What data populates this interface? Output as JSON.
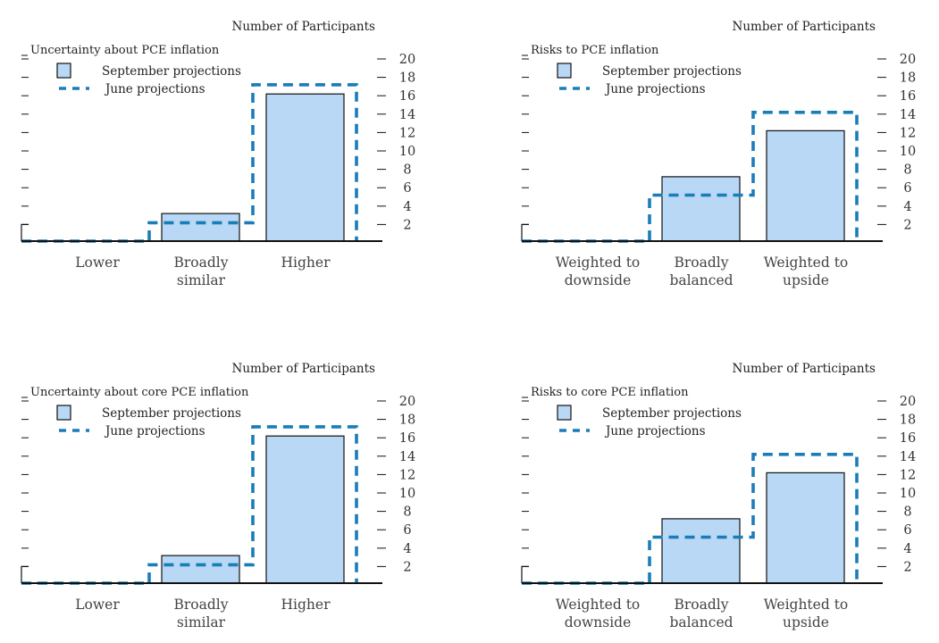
{
  "colors": {
    "bar_fill": "#b8d8f6",
    "bar_stroke": "#111111",
    "june_line": "#1a7db8",
    "axis": "#111111"
  },
  "chart_data": [
    {
      "type": "bar",
      "title": "Uncertainty about PCE inflation",
      "units_label": "Number of Participants",
      "categories": [
        [
          "Lower"
        ],
        [
          "Broadly",
          "similar"
        ],
        [
          "Higher"
        ]
      ],
      "series": [
        {
          "name": "September projections",
          "style": "bar",
          "values": [
            0,
            3,
            16
          ]
        },
        {
          "name": "June projections",
          "style": "dashed-step",
          "values": [
            0,
            2,
            17
          ]
        }
      ],
      "yticks": [
        2,
        4,
        6,
        8,
        10,
        12,
        14,
        16,
        18,
        20
      ],
      "ylim": [
        0,
        20
      ],
      "legend_position": "top-left"
    },
    {
      "type": "bar",
      "title": "Risks to PCE inflation",
      "units_label": "Number of Participants",
      "categories": [
        [
          "Weighted to",
          "downside"
        ],
        [
          "Broadly",
          "balanced"
        ],
        [
          "Weighted to",
          "upside"
        ]
      ],
      "series": [
        {
          "name": "September projections",
          "style": "bar",
          "values": [
            0,
            7,
            12
          ]
        },
        {
          "name": "June projections",
          "style": "dashed-step",
          "values": [
            0,
            5,
            14
          ]
        }
      ],
      "yticks": [
        2,
        4,
        6,
        8,
        10,
        12,
        14,
        16,
        18,
        20
      ],
      "ylim": [
        0,
        20
      ],
      "legend_position": "top-left"
    },
    {
      "type": "bar",
      "title": "Uncertainty about core PCE inflation",
      "units_label": "Number of Participants",
      "categories": [
        [
          "Lower"
        ],
        [
          "Broadly",
          "similar"
        ],
        [
          "Higher"
        ]
      ],
      "series": [
        {
          "name": "September projections",
          "style": "bar",
          "values": [
            0,
            3,
            16
          ]
        },
        {
          "name": "June projections",
          "style": "dashed-step",
          "values": [
            0,
            2,
            17
          ]
        }
      ],
      "yticks": [
        2,
        4,
        6,
        8,
        10,
        12,
        14,
        16,
        18,
        20
      ],
      "ylim": [
        0,
        20
      ],
      "legend_position": "top-left"
    },
    {
      "type": "bar",
      "title": "Risks to core PCE inflation",
      "units_label": "Number of Participants",
      "categories": [
        [
          "Weighted to",
          "downside"
        ],
        [
          "Broadly",
          "balanced"
        ],
        [
          "Weighted to",
          "upside"
        ]
      ],
      "series": [
        {
          "name": "September projections",
          "style": "bar",
          "values": [
            0,
            7,
            12
          ]
        },
        {
          "name": "June projections",
          "style": "dashed-step",
          "values": [
            0,
            5,
            14
          ]
        }
      ],
      "yticks": [
        2,
        4,
        6,
        8,
        10,
        12,
        14,
        16,
        18,
        20
      ],
      "ylim": [
        0,
        20
      ],
      "legend_position": "top-left"
    }
  ]
}
